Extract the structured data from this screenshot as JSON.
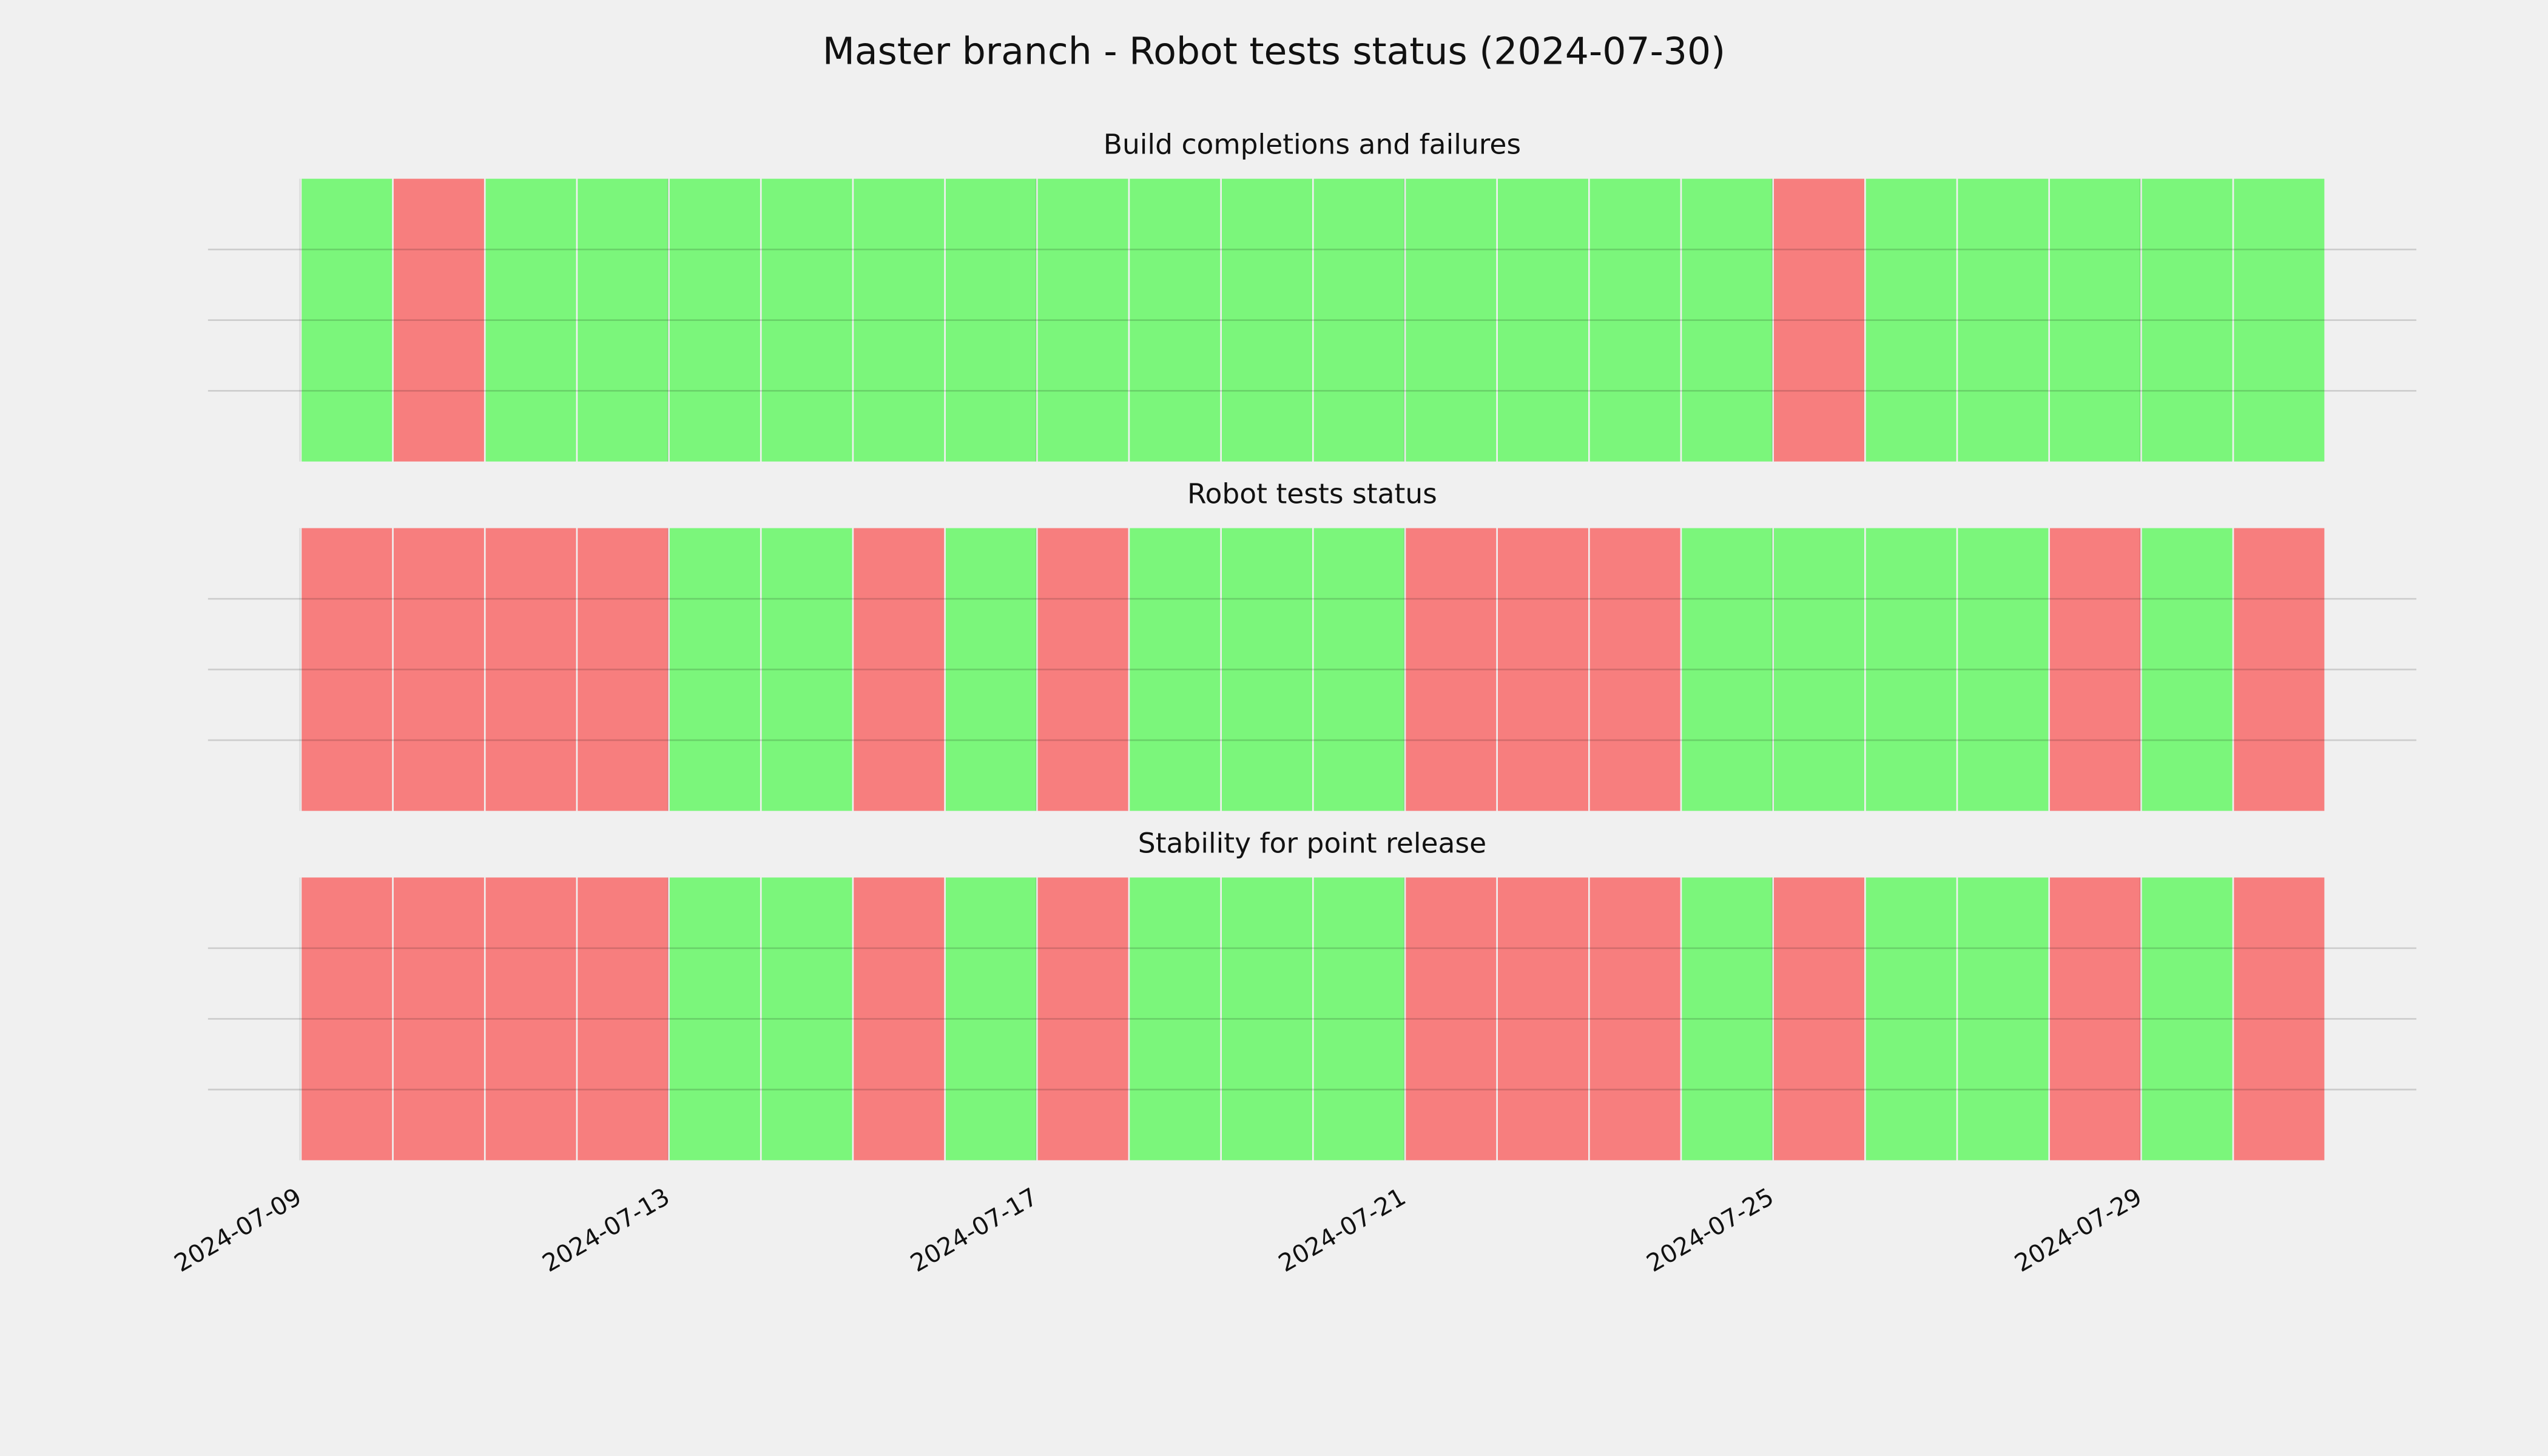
{
  "title": "Master branch - Robot tests status (2024-07-30)",
  "chart_data": [
    {
      "type": "timeline",
      "title": "Build completions and failures",
      "x": [
        "2024-07-09",
        "2024-07-10",
        "2024-07-11",
        "2024-07-12",
        "2024-07-13",
        "2024-07-14",
        "2024-07-15",
        "2024-07-16",
        "2024-07-17",
        "2024-07-18",
        "2024-07-19",
        "2024-07-20",
        "2024-07-21",
        "2024-07-22",
        "2024-07-23",
        "2024-07-24",
        "2024-07-25",
        "2024-07-26",
        "2024-07-27",
        "2024-07-28",
        "2024-07-29",
        "2024-07-30"
      ],
      "values": [
        1,
        0,
        1,
        1,
        1,
        1,
        1,
        1,
        1,
        1,
        1,
        1,
        1,
        1,
        1,
        1,
        0,
        1,
        1,
        1,
        1,
        1
      ],
      "pass_color": "#74f574",
      "fail_color": "#f77777",
      "xlim": [
        "2024-07-08",
        "2024-08-01"
      ],
      "xticks": [
        "2024-07-09",
        "2024-07-13",
        "2024-07-17",
        "2024-07-21",
        "2024-07-25",
        "2024-07-29"
      ],
      "ylim": [
        0,
        1
      ],
      "yticks": [
        0.25,
        0.5,
        0.75
      ],
      "grid": true
    },
    {
      "type": "timeline",
      "title": "Robot tests status",
      "x": [
        "2024-07-09",
        "2024-07-10",
        "2024-07-11",
        "2024-07-12",
        "2024-07-13",
        "2024-07-14",
        "2024-07-15",
        "2024-07-16",
        "2024-07-17",
        "2024-07-18",
        "2024-07-19",
        "2024-07-20",
        "2024-07-21",
        "2024-07-22",
        "2024-07-23",
        "2024-07-24",
        "2024-07-25",
        "2024-07-26",
        "2024-07-27",
        "2024-07-28",
        "2024-07-29",
        "2024-07-30"
      ],
      "values": [
        0,
        0,
        0,
        0,
        1,
        1,
        0,
        1,
        0,
        1,
        1,
        1,
        0,
        0,
        0,
        1,
        1,
        1,
        1,
        0,
        1,
        0
      ],
      "pass_color": "#74f574",
      "fail_color": "#f77777",
      "xlim": [
        "2024-07-08",
        "2024-08-01"
      ],
      "xticks": [
        "2024-07-09",
        "2024-07-13",
        "2024-07-17",
        "2024-07-21",
        "2024-07-25",
        "2024-07-29"
      ],
      "ylim": [
        0,
        1
      ],
      "yticks": [
        0.25,
        0.5,
        0.75
      ],
      "grid": true
    },
    {
      "type": "timeline",
      "title": "Stability for point release",
      "x": [
        "2024-07-09",
        "2024-07-10",
        "2024-07-11",
        "2024-07-12",
        "2024-07-13",
        "2024-07-14",
        "2024-07-15",
        "2024-07-16",
        "2024-07-17",
        "2024-07-18",
        "2024-07-19",
        "2024-07-20",
        "2024-07-21",
        "2024-07-22",
        "2024-07-23",
        "2024-07-24",
        "2024-07-25",
        "2024-07-26",
        "2024-07-27",
        "2024-07-28",
        "2024-07-29",
        "2024-07-30"
      ],
      "values": [
        0,
        0,
        0,
        0,
        1,
        1,
        0,
        1,
        0,
        1,
        1,
        1,
        0,
        0,
        0,
        1,
        0,
        1,
        1,
        0,
        1,
        0
      ],
      "pass_color": "#74f574",
      "fail_color": "#f77777",
      "xlim": [
        "2024-07-08",
        "2024-08-01"
      ],
      "xticks": [
        "2024-07-09",
        "2024-07-13",
        "2024-07-17",
        "2024-07-21",
        "2024-07-25",
        "2024-07-29"
      ],
      "ylim": [
        0,
        1
      ],
      "yticks": [
        0.25,
        0.5,
        0.75
      ],
      "grid": true
    }
  ]
}
